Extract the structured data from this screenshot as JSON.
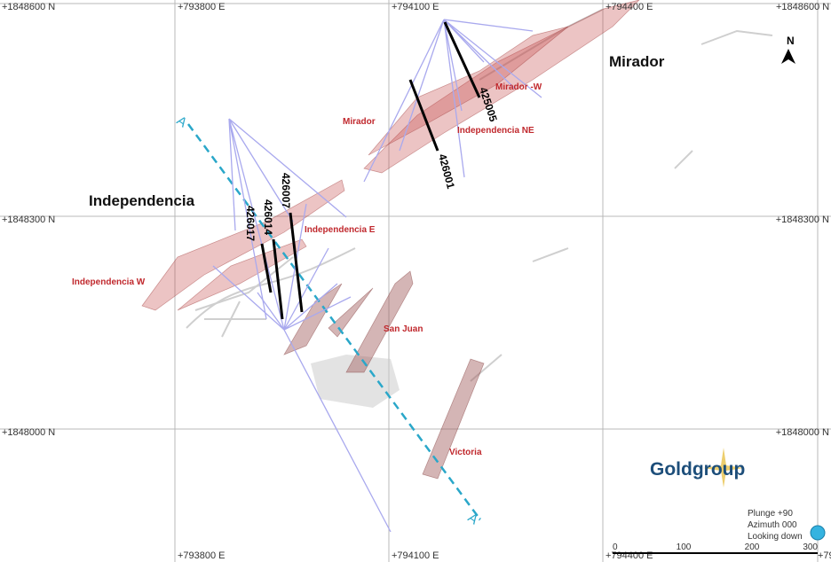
{
  "grid": {
    "top": [
      "+1848600 N",
      "+793800 E",
      "+794100 E",
      "+794400 E",
      "+1848600 N"
    ],
    "left": [
      "+1848300 N",
      "+1848000 N"
    ],
    "right": [
      "+1848300 N",
      "+1848000 N"
    ],
    "bottom": [
      "+793800 E",
      "+794100 E",
      "+794400 E",
      "+79"
    ]
  },
  "areas": [
    "Mirador",
    "Independencia"
  ],
  "zones": [
    "Mirador -W",
    "Mirador",
    "Independencia NE",
    "Independencia E",
    "Independencia W",
    "San Juan",
    "Victoria"
  ],
  "section": [
    "A",
    "A'"
  ],
  "drillholes": [
    "425005",
    "426001",
    "426007",
    "426014",
    "426017"
  ],
  "north": "N",
  "logo": "Goldgroup",
  "view": [
    "Plunge +90",
    "Azimuth 000",
    "Looking down"
  ],
  "scale": [
    0,
    100,
    200,
    300
  ]
}
